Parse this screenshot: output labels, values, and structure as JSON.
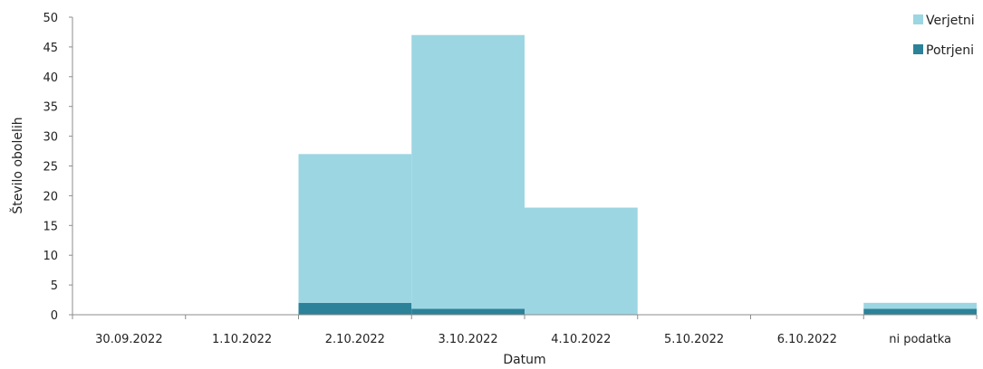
{
  "chart_data": {
    "type": "bar",
    "stacked": true,
    "categories": [
      "30.09.2022",
      "1.10.2022",
      "2.10.2022",
      "3.10.2022",
      "4.10.2022",
      "5.10.2022",
      "6.10.2022",
      "ni podatka"
    ],
    "series": [
      {
        "name": "Potrjeni",
        "color": "#2b8299",
        "values": [
          0,
          0,
          2,
          1,
          0,
          0,
          0,
          1
        ]
      },
      {
        "name": "Verjetni",
        "color": "#9cd6e2",
        "values": [
          0,
          0,
          25,
          46,
          18,
          0,
          0,
          1
        ]
      }
    ],
    "xlabel": "Datum",
    "ylabel": "Število obolelih",
    "ylim": [
      0,
      50
    ],
    "yticks": [
      0,
      5,
      10,
      15,
      20,
      25,
      30,
      35,
      40,
      45,
      50
    ],
    "grid": false,
    "legend": {
      "position": "top-right",
      "order": [
        "Verjetni",
        "Potrjeni"
      ]
    }
  }
}
